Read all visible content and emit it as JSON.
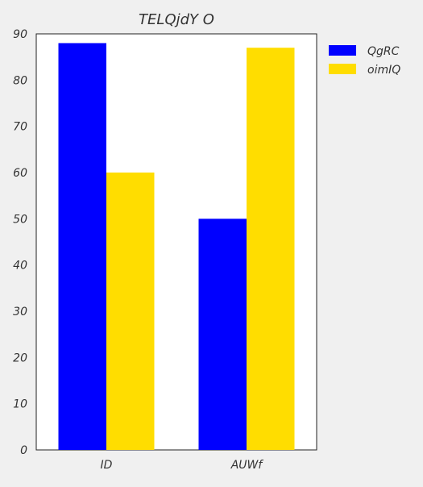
{
  "chart_data": {
    "type": "bar",
    "title": "TELQjdY  O",
    "xlabel": "",
    "ylabel": "",
    "categories": [
      "ID",
      "AUWf"
    ],
    "series": [
      {
        "name": "QgRC",
        "values": [
          88,
          50
        ],
        "color": "#0000ff"
      },
      {
        "name": "oimIQ",
        "values": [
          60,
          87
        ],
        "color": "#ffdd00"
      }
    ],
    "ylim": [
      0,
      90
    ],
    "yticks": [
      0,
      10,
      20,
      30,
      40,
      50,
      60,
      70,
      80,
      90
    ],
    "grid": false,
    "legend_position": "outside-top-right",
    "plot_background": "#ffffff",
    "page_background": "#f0f0f0"
  }
}
